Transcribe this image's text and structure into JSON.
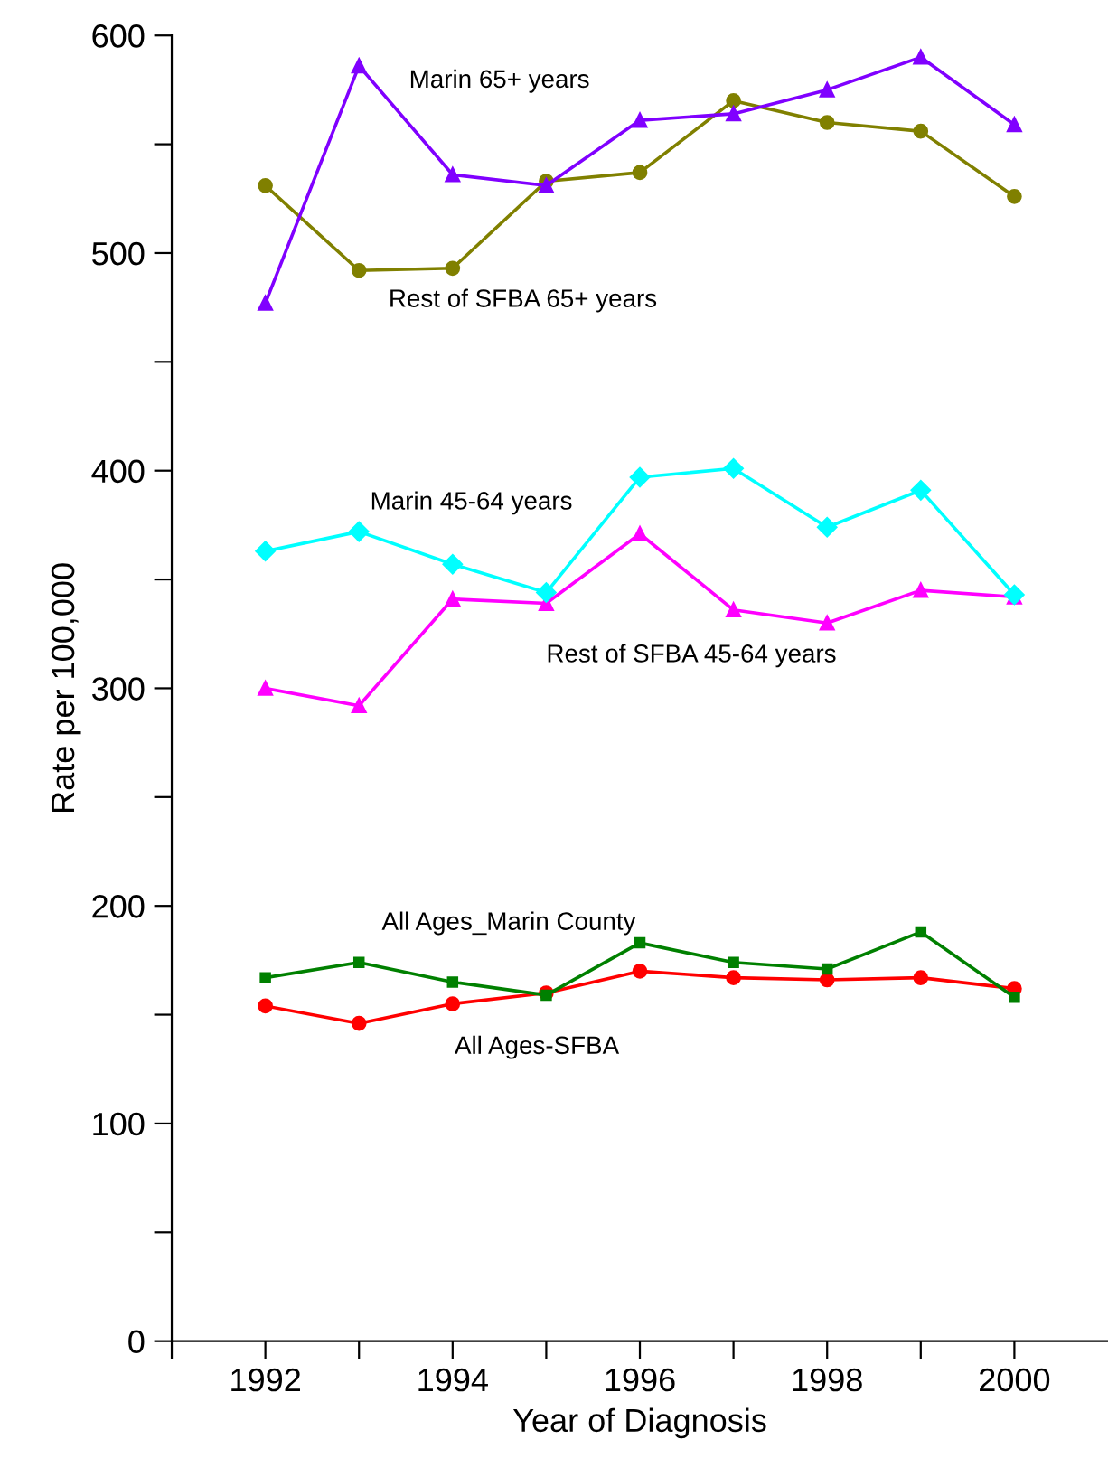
{
  "chart_data": {
    "type": "line",
    "xlabel": "Year of Diagnosis",
    "ylabel": "Rate per 100,000",
    "x": [
      1992,
      1993,
      1994,
      1995,
      1996,
      1997,
      1998,
      1999,
      2000
    ],
    "xlim": [
      1991,
      2001
    ],
    "xticks": [
      {
        "value": 1991,
        "label": null
      },
      1992,
      {
        "value": 1993,
        "label": null
      },
      1994,
      {
        "value": 1995,
        "label": null
      },
      1996,
      {
        "value": 1997,
        "label": null
      },
      1998,
      {
        "value": 1999,
        "label": null
      },
      2000
    ],
    "ylim": [
      0,
      600
    ],
    "yticks": [
      0,
      {
        "value": 50,
        "label": null
      },
      100,
      {
        "value": 150,
        "label": null
      },
      200,
      {
        "value": 250,
        "label": null
      },
      300,
      {
        "value": 350,
        "label": null
      },
      400,
      {
        "value": 450,
        "label": null
      },
      500,
      {
        "value": 550,
        "label": null
      },
      600
    ],
    "grid": false,
    "legend": false,
    "series": [
      {
        "name": "Marin 65+ years",
        "color": "#8000ff",
        "marker": "triangle",
        "values": [
          477,
          586,
          536,
          531,
          561,
          564,
          575,
          590,
          559
        ]
      },
      {
        "name": "Rest of SFBA 65+ years",
        "color": "#808000",
        "marker": "circle",
        "values": [
          531,
          492,
          493,
          533,
          537,
          570,
          560,
          556,
          526
        ]
      },
      {
        "name": "Marin 45-64 years",
        "color": "#00ffff",
        "marker": "diamond",
        "values": [
          363,
          372,
          357,
          344,
          397,
          401,
          374,
          391,
          343
        ]
      },
      {
        "name": "Rest of SFBA 45-64 years",
        "color": "#ff00ff",
        "marker": "triangle",
        "values": [
          300,
          292,
          341,
          339,
          371,
          336,
          330,
          345,
          342
        ]
      },
      {
        "name": "All Ages_Marin County",
        "color": "#008000",
        "marker": "square",
        "values": [
          167,
          174,
          165,
          159,
          183,
          174,
          171,
          188,
          158
        ]
      },
      {
        "name": "All Ages-SFBA",
        "color": "#ff0000",
        "marker": "circle",
        "values": [
          154,
          146,
          155,
          160,
          170,
          167,
          166,
          167,
          162
        ]
      }
    ]
  }
}
